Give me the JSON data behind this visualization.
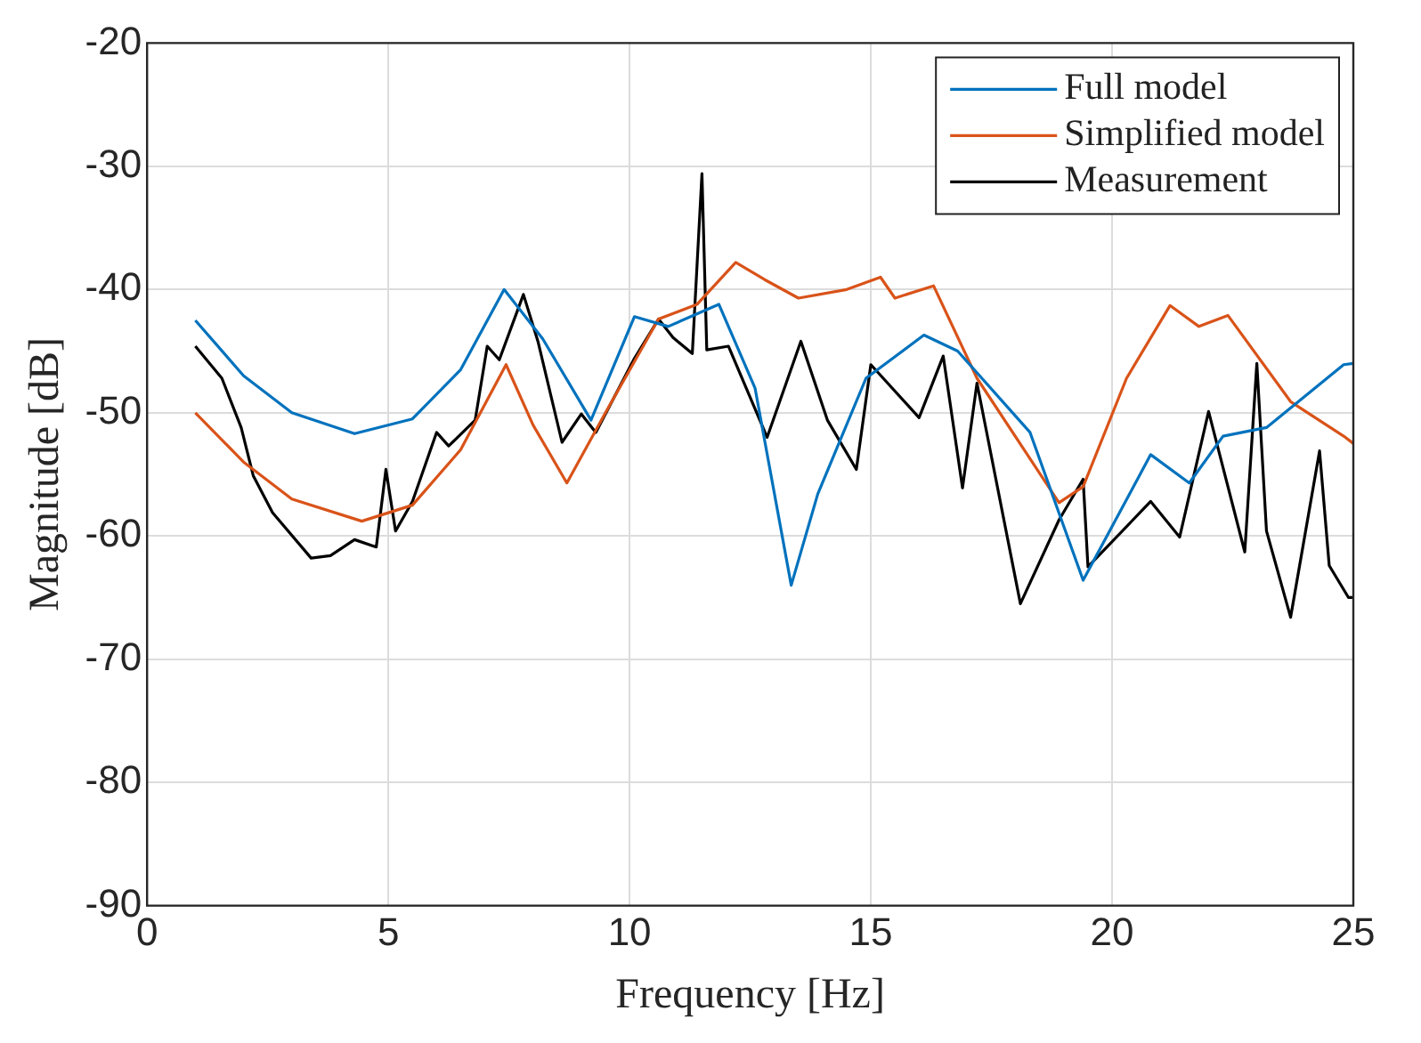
{
  "chart_data": {
    "type": "line",
    "xlabel": "Frequency [Hz]",
    "ylabel": "Magnitude [dB]",
    "xlim": [
      0,
      25
    ],
    "xticks": [
      0,
      5,
      10,
      15,
      20,
      25
    ],
    "ylim": [
      -90,
      -20
    ],
    "yticks": [
      -90,
      -80,
      -70,
      -60,
      -50,
      -40,
      -30,
      -20
    ],
    "grid": true,
    "legend": "top right",
    "marker": "none",
    "line_style": "solid",
    "series": [
      {
        "name": "Full model",
        "color": "#0072bd",
        "x": [
          1,
          2,
          3,
          4.3,
          5.5,
          6.5,
          7.4,
          8.2,
          9.2,
          10.1,
          10.8,
          11.85,
          12.6,
          13.35,
          13.9,
          14.9,
          16.1,
          16.8,
          18.3,
          19.4,
          20.8,
          21.6,
          22.3,
          23.2,
          24.8,
          25
        ],
        "values": [
          -42.5,
          -47,
          -50,
          -51.7,
          -50.5,
          -46.5,
          -40,
          -44,
          -50.6,
          -42.2,
          -43,
          -41.2,
          -48,
          -64,
          -56.6,
          -47.2,
          -43.7,
          -45,
          -51.6,
          -63.6,
          -53.4,
          -55.7,
          -51.9,
          -51.2,
          -46.1,
          -46
        ]
      },
      {
        "name": "Simplified model",
        "color": "#d95319",
        "x": [
          1,
          2,
          3,
          4.45,
          5.5,
          6.5,
          7.44,
          8,
          8.7,
          9.5,
          10.6,
          11.4,
          12.2,
          12.8,
          13.5,
          14.5,
          15.2,
          15.5,
          16.3,
          17.2,
          18.9,
          19.4,
          20.3,
          21.2,
          21.8,
          22.4,
          23.7,
          24.8,
          25
        ],
        "values": [
          -50,
          -54,
          -57,
          -58.8,
          -57.5,
          -53,
          -46.1,
          -51,
          -55.7,
          -50,
          -42.4,
          -41.2,
          -37.8,
          -39.2,
          -40.7,
          -40,
          -39,
          -40.7,
          -39.7,
          -47.2,
          -57.3,
          -56,
          -47.2,
          -41.3,
          -43,
          -42.1,
          -49.1,
          -51.9,
          -52.5
        ]
      },
      {
        "name": "Measurement",
        "color": "#000000",
        "x": [
          1,
          1.55,
          1.95,
          2.2,
          2.6,
          3.4,
          3.8,
          4.3,
          4.75,
          4.95,
          5.15,
          5.5,
          6,
          6.25,
          6.8,
          7.05,
          7.3,
          7.8,
          8.1,
          8.6,
          9,
          9.3,
          10.1,
          10.6,
          10.9,
          11.3,
          11.5,
          11.6,
          12.05,
          12.85,
          13.55,
          14.1,
          14.7,
          15,
          16,
          16.5,
          16.9,
          17.2,
          18.1,
          18.9,
          19.4,
          19.5,
          20.8,
          21.4,
          22,
          22.75,
          23,
          23.2,
          23.7,
          24.3,
          24.5,
          24.9,
          25
        ],
        "values": [
          -44.6,
          -47.2,
          -51.2,
          -55.1,
          -58.1,
          -61.8,
          -61.6,
          -60.3,
          -60.9,
          -54.6,
          -59.6,
          -57.2,
          -51.6,
          -52.7,
          -50.6,
          -44.6,
          -45.7,
          -40.4,
          -44.2,
          -52.4,
          -50.1,
          -51.6,
          -45.6,
          -42.4,
          -43.9,
          -45.2,
          -30.6,
          -44.9,
          -44.6,
          -52,
          -44.2,
          -50.6,
          -54.6,
          -46.1,
          -50.4,
          -45.4,
          -56.1,
          -47.6,
          -65.5,
          -58.7,
          -55.4,
          -62.5,
          -57.2,
          -60.1,
          -49.9,
          -61.3,
          -46,
          -59.6,
          -66.6,
          -53.1,
          -62.4,
          -65,
          -65
        ]
      }
    ]
  }
}
